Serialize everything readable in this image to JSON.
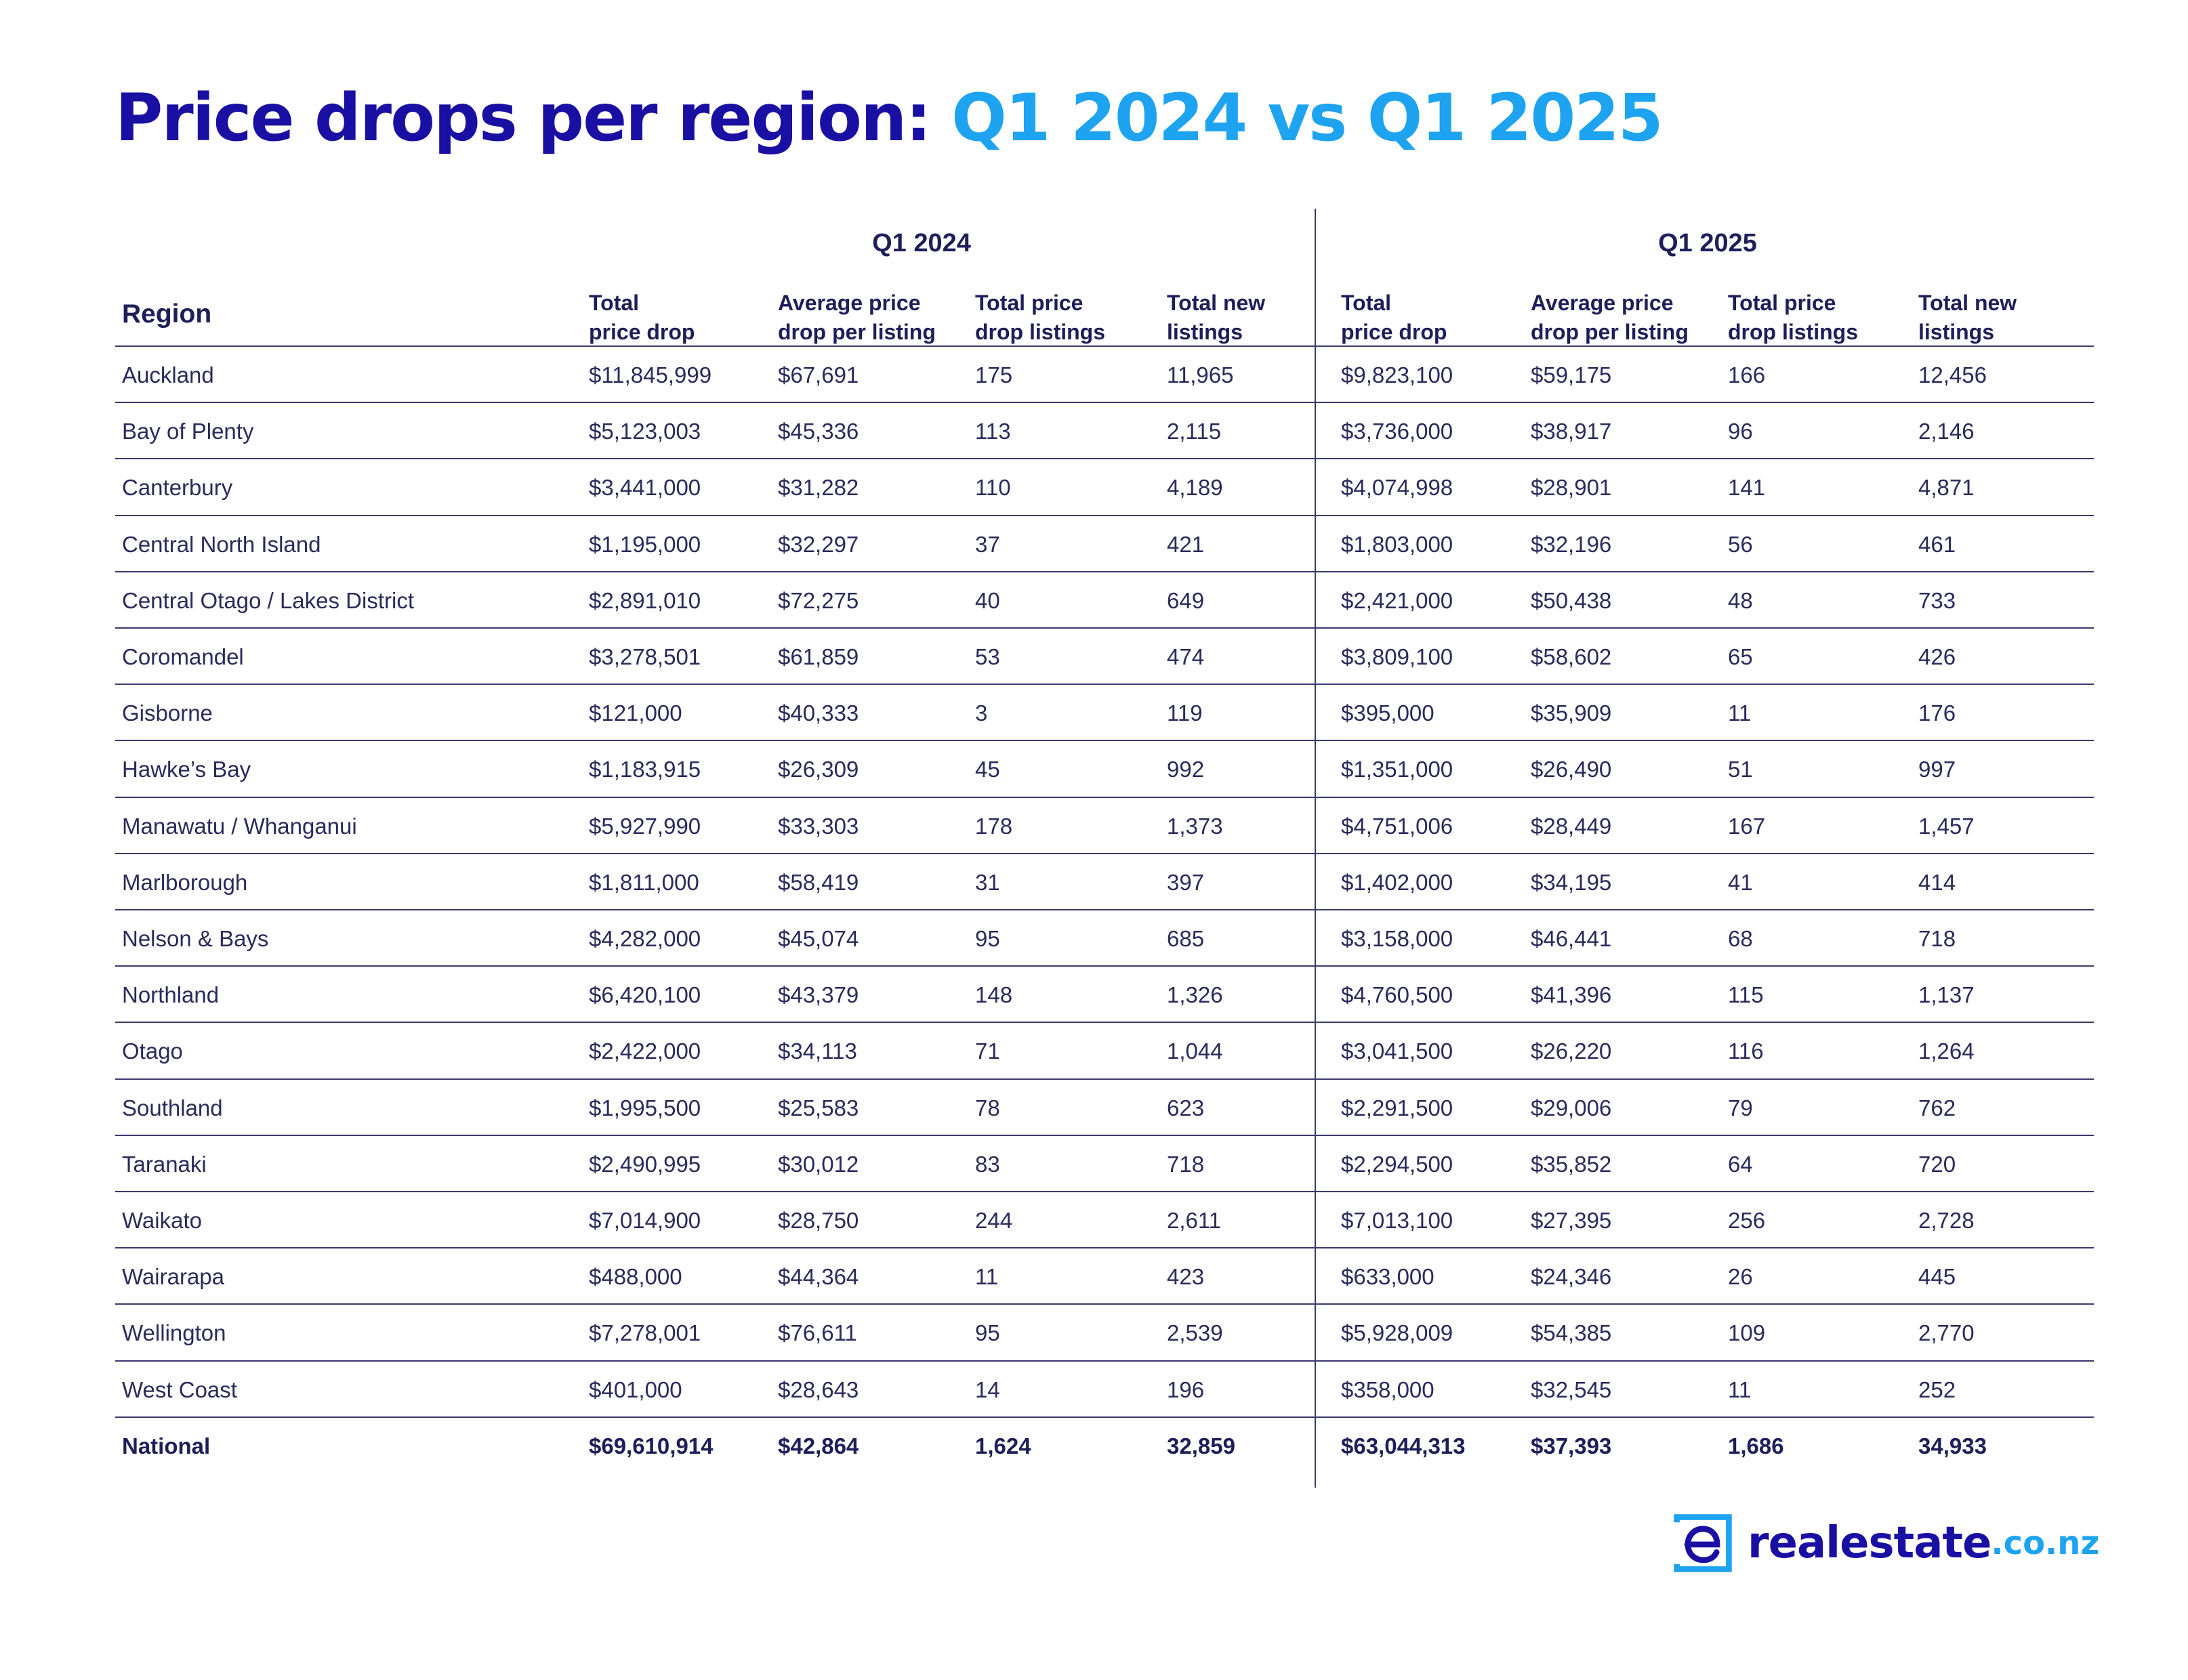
{
  "title": {
    "part1": "Price drops per region: ",
    "part2": "Q1 2024 vs Q1 2025"
  },
  "colors": {
    "navy": "#1a0fa3",
    "sky": "#1ea3f0",
    "text": "#1e1e5a"
  },
  "table": {
    "groups": [
      "Q1 2024",
      "Q1 2025"
    ],
    "region_header": "Region",
    "column_headers": [
      "Total\nprice drop",
      "Average price\ndrop per listing",
      "Total price\ndrop listings",
      "Total new\nlistings",
      "Total\nprice drop",
      "Average price\ndrop per listing",
      "Total price\ndrop listings",
      "Total new\nlistings"
    ],
    "rows": [
      [
        "Auckland",
        "$11,845,999",
        "$67,691",
        "175",
        "11,965",
        "$9,823,100",
        "$59,175",
        "166",
        "12,456"
      ],
      [
        "Bay of Plenty",
        "$5,123,003",
        "$45,336",
        "113",
        "2,115",
        "$3,736,000",
        "$38,917",
        "96",
        "2,146"
      ],
      [
        "Canterbury",
        "$3,441,000",
        "$31,282",
        "110",
        "4,189",
        "$4,074,998",
        "$28,901",
        "141",
        "4,871"
      ],
      [
        "Central North Island",
        "$1,195,000",
        "$32,297",
        "37",
        "421",
        "$1,803,000",
        "$32,196",
        "56",
        "461"
      ],
      [
        "Central Otago / Lakes District",
        "$2,891,010",
        "$72,275",
        "40",
        "649",
        "$2,421,000",
        "$50,438",
        "48",
        "733"
      ],
      [
        "Coromandel",
        "$3,278,501",
        "$61,859",
        "53",
        "474",
        "$3,809,100",
        "$58,602",
        "65",
        "426"
      ],
      [
        "Gisborne",
        "$121,000",
        "$40,333",
        "3",
        "119",
        "$395,000",
        "$35,909",
        "11",
        "176"
      ],
      [
        "Hawke’s Bay",
        "$1,183,915",
        "$26,309",
        "45",
        "992",
        "$1,351,000",
        "$26,490",
        "51",
        "997"
      ],
      [
        "Manawatu / Whanganui",
        "$5,927,990",
        "$33,303",
        "178",
        "1,373",
        "$4,751,006",
        "$28,449",
        "167",
        "1,457"
      ],
      [
        "Marlborough",
        "$1,811,000",
        "$58,419",
        "31",
        "397",
        "$1,402,000",
        "$34,195",
        "41",
        "414"
      ],
      [
        "Nelson & Bays",
        "$4,282,000",
        "$45,074",
        "95",
        "685",
        "$3,158,000",
        "$46,441",
        "68",
        "718"
      ],
      [
        "Northland",
        "$6,420,100",
        "$43,379",
        "148",
        "1,326",
        "$4,760,500",
        "$41,396",
        "115",
        "1,137"
      ],
      [
        "Otago",
        "$2,422,000",
        "$34,113",
        "71",
        "1,044",
        "$3,041,500",
        "$26,220",
        "116",
        "1,264"
      ],
      [
        "Southland",
        "$1,995,500",
        "$25,583",
        "78",
        "623",
        "$2,291,500",
        "$29,006",
        "79",
        "762"
      ],
      [
        "Taranaki",
        "$2,490,995",
        "$30,012",
        "83",
        "718",
        "$2,294,500",
        "$35,852",
        "64",
        "720"
      ],
      [
        "Waikato",
        "$7,014,900",
        "$28,750",
        "244",
        "2,611",
        "$7,013,100",
        "$27,395",
        "256",
        "2,728"
      ],
      [
        "Wairarapa",
        "$488,000",
        "$44,364",
        "11",
        "423",
        "$633,000",
        "$24,346",
        "26",
        "445"
      ],
      [
        "Wellington",
        "$7,278,001",
        "$76,611",
        "95",
        "2,539",
        "$5,928,009",
        "$54,385",
        "109",
        "2,770"
      ],
      [
        "West Coast",
        "$401,000",
        "$28,643",
        "14",
        "196",
        "$358,000",
        "$32,545",
        "11",
        "252"
      ]
    ],
    "total_row": [
      "National",
      "$69,610,914",
      "$42,864",
      "1,624",
      "32,859",
      "$63,044,313",
      "$37,393",
      "1,686",
      "34,933"
    ]
  },
  "logo": {
    "brand": "realestate",
    "tld": ".co.nz",
    "icon": "realestate-e-logo-icon"
  }
}
